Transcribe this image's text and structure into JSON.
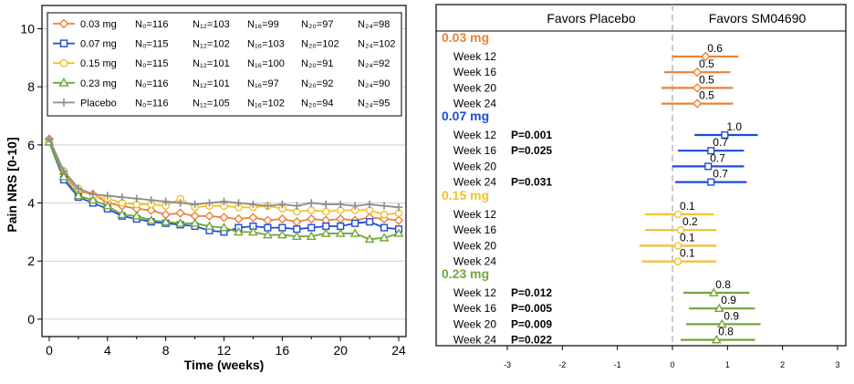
{
  "colors": {
    "c003": "#E8823A",
    "c007": "#1F4BD8",
    "c015": "#F2C12E",
    "c023": "#73A53A",
    "placebo": "#8C8C8C"
  },
  "chart_data": [
    {
      "type": "line",
      "xlabel": "Time (weeks)",
      "ylabel": "Pain NRS [0-10]",
      "xlim": [
        -0.5,
        24.5
      ],
      "ylim": [
        -0.6,
        10.8
      ],
      "xticks": [
        "0",
        "4",
        "8",
        "12",
        "16",
        "20",
        "24"
      ],
      "yticks": [
        "0",
        "2",
        "4",
        "6",
        "8",
        "10"
      ],
      "grid": true,
      "legend_position": "top",
      "x": [
        0,
        1,
        2,
        3,
        4,
        5,
        6,
        7,
        8,
        9,
        10,
        11,
        12,
        13,
        14,
        15,
        16,
        17,
        18,
        19,
        20,
        21,
        22,
        23,
        24
      ],
      "series": [
        {
          "name": "0.03 mg",
          "color_key": "c003",
          "marker": "diamond",
          "n_labels": [
            "N₀=116",
            "N₁₂=103",
            "N₁₆=99",
            "N₂₀=97",
            "N₂₄=98"
          ],
          "values": [
            6.2,
            5.0,
            4.4,
            4.3,
            4.0,
            3.9,
            3.8,
            3.75,
            3.6,
            3.65,
            3.55,
            3.55,
            3.5,
            3.45,
            3.5,
            3.4,
            3.45,
            3.35,
            3.45,
            3.4,
            3.45,
            3.4,
            3.5,
            3.45,
            3.4
          ]
        },
        {
          "name": "0.07 mg",
          "color_key": "c007",
          "marker": "square",
          "n_labels": [
            "N₀=115",
            "N₁₂=102",
            "N₁₆=103",
            "N₂₀=102",
            "N₂₄=102"
          ],
          "values": [
            6.1,
            4.8,
            4.2,
            4.0,
            3.8,
            3.55,
            3.45,
            3.35,
            3.3,
            3.25,
            3.2,
            3.05,
            3.0,
            3.15,
            3.2,
            3.15,
            3.15,
            3.1,
            3.15,
            3.2,
            3.2,
            3.3,
            3.35,
            3.15,
            3.1
          ]
        },
        {
          "name": "0.15 mg",
          "color_key": "c015",
          "marker": "circle",
          "n_labels": [
            "N₀=115",
            "N₁₂=101",
            "N₁₆=100",
            "N₂₀=91",
            "N₂₄=92"
          ],
          "values": [
            6.1,
            5.1,
            4.5,
            4.25,
            4.15,
            4.0,
            3.95,
            3.95,
            3.9,
            4.15,
            3.85,
            3.9,
            3.9,
            3.85,
            3.85,
            3.9,
            3.8,
            3.7,
            3.75,
            3.7,
            3.75,
            3.75,
            3.75,
            3.6,
            3.65
          ]
        },
        {
          "name": "0.23 mg",
          "color_key": "c023",
          "marker": "triangle",
          "n_labels": [
            "N₀=116",
            "N₁₂=101",
            "N₁₆=97",
            "N₂₀=92",
            "N₂₄=90"
          ],
          "values": [
            6.1,
            4.9,
            4.25,
            4.1,
            3.9,
            3.6,
            3.55,
            3.4,
            3.35,
            3.3,
            3.3,
            3.2,
            3.15,
            3.0,
            3.0,
            2.9,
            2.9,
            2.85,
            2.85,
            2.95,
            2.95,
            2.95,
            2.75,
            2.8,
            2.95
          ]
        },
        {
          "name": "Placebo",
          "color_key": "placebo",
          "marker": "plus",
          "n_labels": [
            "N₀=116",
            "N₁₂=105",
            "N₁₆=102",
            "N₂₀=94",
            "N₂₄=95"
          ],
          "values": [
            6.2,
            5.1,
            4.5,
            4.3,
            4.25,
            4.2,
            4.15,
            4.1,
            4.05,
            4.0,
            3.95,
            4.0,
            4.05,
            4.0,
            3.95,
            3.9,
            3.95,
            3.9,
            4.0,
            3.95,
            3.95,
            3.9,
            3.95,
            3.9,
            3.85
          ]
        }
      ]
    },
    {
      "type": "forest",
      "left_header": "Favors Placebo",
      "right_header": "Favors SM04690",
      "xlim": [
        -3,
        3
      ],
      "xticks": [
        "-3",
        "-2",
        "-1",
        "0",
        "1",
        "2",
        "3"
      ],
      "groups": [
        {
          "name": "0.03 mg",
          "color_key": "c003",
          "marker": "diamond",
          "rows": [
            {
              "label": "Week 12",
              "p": "",
              "est": 0.6,
              "lo": 0.0,
              "hi": 1.2,
              "est_label": "0.6"
            },
            {
              "label": "Week 16",
              "p": "",
              "est": 0.45,
              "lo": -0.15,
              "hi": 1.05,
              "est_label": "0.5"
            },
            {
              "label": "Week 20",
              "p": "",
              "est": 0.45,
              "lo": -0.2,
              "hi": 1.1,
              "est_label": "0.5"
            },
            {
              "label": "Week 24",
              "p": "",
              "est": 0.45,
              "lo": -0.2,
              "hi": 1.1,
              "est_label": "0.5"
            }
          ]
        },
        {
          "name": "0.07 mg",
          "color_key": "c007",
          "marker": "square",
          "rows": [
            {
              "label": "Week 12",
              "p": "P=0.001",
              "est": 0.95,
              "lo": 0.4,
              "hi": 1.55,
              "est_label": "1.0"
            },
            {
              "label": "Week 16",
              "p": "P=0.025",
              "est": 0.7,
              "lo": 0.1,
              "hi": 1.3,
              "est_label": "0.7"
            },
            {
              "label": "Week 20",
              "p": "",
              "est": 0.65,
              "lo": 0.0,
              "hi": 1.3,
              "est_label": "0.7"
            },
            {
              "label": "Week 24",
              "p": "P=0.031",
              "est": 0.7,
              "lo": 0.05,
              "hi": 1.35,
              "est_label": "0.7"
            }
          ]
        },
        {
          "name": "0.15 mg",
          "color_key": "c015",
          "marker": "circle",
          "rows": [
            {
              "label": "Week 12",
              "p": "",
              "est": 0.1,
              "lo": -0.5,
              "hi": 0.75,
              "est_label": "0.1"
            },
            {
              "label": "Week 16",
              "p": "",
              "est": 0.15,
              "lo": -0.5,
              "hi": 0.8,
              "est_label": "0.2"
            },
            {
              "label": "Week 20",
              "p": "",
              "est": 0.1,
              "lo": -0.6,
              "hi": 0.8,
              "est_label": "0.1"
            },
            {
              "label": "Week 24",
              "p": "",
              "est": 0.1,
              "lo": -0.55,
              "hi": 0.8,
              "est_label": "0.1"
            }
          ]
        },
        {
          "name": "0.23 mg",
          "color_key": "c023",
          "marker": "triangle",
          "rows": [
            {
              "label": "Week 12",
              "p": "P=0.012",
              "est": 0.75,
              "lo": 0.2,
              "hi": 1.4,
              "est_label": "0.8"
            },
            {
              "label": "Week 16",
              "p": "P=0.005",
              "est": 0.85,
              "lo": 0.3,
              "hi": 1.5,
              "est_label": "0.9"
            },
            {
              "label": "Week 20",
              "p": "P=0.009",
              "est": 0.9,
              "lo": 0.25,
              "hi": 1.6,
              "est_label": "0.9"
            },
            {
              "label": "Week 24",
              "p": "P=0.022",
              "est": 0.8,
              "lo": 0.15,
              "hi": 1.5,
              "est_label": "0.8"
            }
          ]
        }
      ]
    }
  ]
}
